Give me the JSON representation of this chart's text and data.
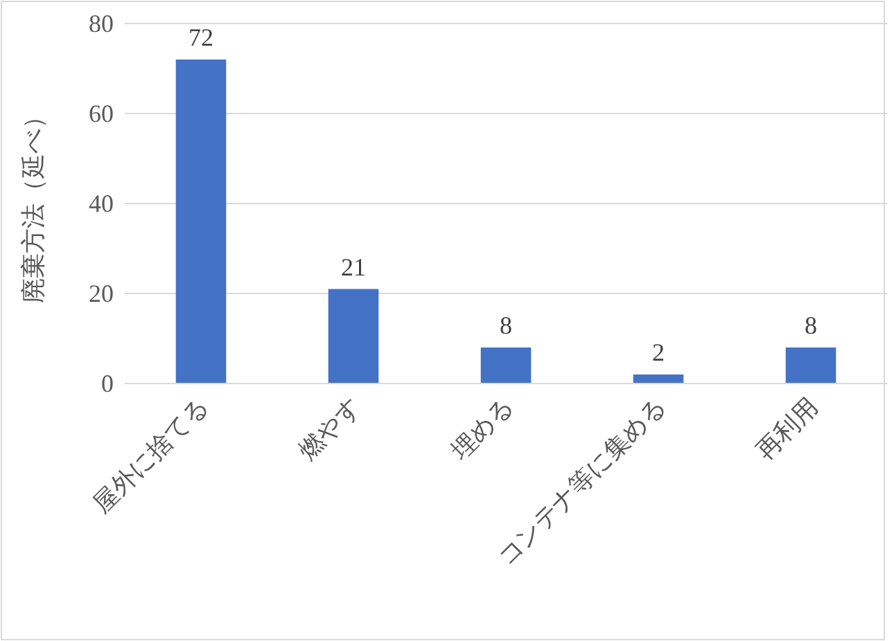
{
  "chart_data": {
    "type": "bar",
    "ylabel": "廃棄方法（延べ）",
    "categories": [
      "屋外に捨てる",
      "燃やす",
      "埋める",
      "コンテナ等に集める",
      "再利用"
    ],
    "values": [
      72,
      21,
      8,
      2,
      8
    ],
    "color": "#4472c4",
    "ylim": [
      0,
      80
    ],
    "yticks": [
      0,
      20,
      40,
      60,
      80
    ],
    "grid": "y",
    "data_labels": true
  }
}
